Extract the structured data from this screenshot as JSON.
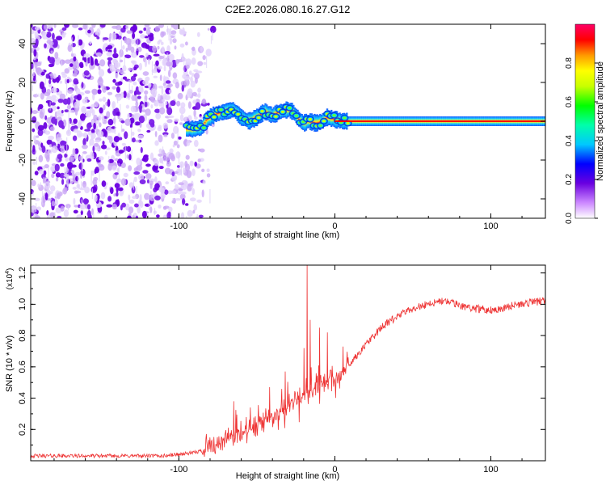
{
  "title": "C2E2.2026.080.16.27.G12",
  "chart_data": [
    {
      "type": "heatmap",
      "name": "spectrogram",
      "xlabel": "Height of straight line (km)",
      "ylabel": "Frequency (Hz)",
      "xlim": [
        -195,
        135
      ],
      "ylim": [
        -50,
        50
      ],
      "xticks": [
        "-100",
        "0",
        "100"
      ],
      "yticks": [
        "-40",
        "-20",
        "0",
        "20",
        "40"
      ],
      "noise_region_x": [
        -195,
        -78
      ],
      "trace": [
        [
          -95,
          -4
        ],
        [
          -90,
          -4
        ],
        [
          -85,
          -3
        ],
        [
          -82,
          1
        ],
        [
          -78,
          3
        ],
        [
          -75,
          4
        ],
        [
          -70,
          5
        ],
        [
          -65,
          6
        ],
        [
          -60,
          2
        ],
        [
          -55,
          0
        ],
        [
          -50,
          2
        ],
        [
          -45,
          5
        ],
        [
          -40,
          3
        ],
        [
          -35,
          5
        ],
        [
          -30,
          6
        ],
        [
          -27,
          5
        ],
        [
          -23,
          1
        ],
        [
          -20,
          -1
        ],
        [
          -17,
          0
        ],
        [
          -12,
          -1
        ],
        [
          -8,
          0
        ],
        [
          -5,
          2
        ],
        [
          0,
          1
        ],
        [
          5,
          0
        ],
        [
          10,
          0
        ],
        [
          20,
          0
        ],
        [
          60,
          0
        ],
        [
          100,
          0
        ],
        [
          135,
          0
        ]
      ],
      "colorbar": {
        "label": "Normalized spectral amplitude",
        "ticks": [
          "0.0",
          "0.2",
          "0.4",
          "0.6",
          "0.8"
        ],
        "range": [
          0,
          1
        ]
      }
    },
    {
      "type": "line",
      "name": "snr",
      "xlabel": "Height of straight line (km)",
      "ylabel": "SNR (10 * v/v)",
      "scale_label": "(x10",
      "scale_exp": "4",
      "scale_close": ")",
      "xlim": [
        -195,
        135
      ],
      "ylim": [
        0,
        1.25
      ],
      "xticks": [
        "-100",
        "0",
        "100"
      ],
      "yticks": [
        "0.2",
        "0.4",
        "0.6",
        "0.8",
        "1.0",
        "1.2"
      ],
      "color": "#ee3333",
      "series_envelope": [
        [
          -195,
          0.03
        ],
        [
          -150,
          0.03
        ],
        [
          -110,
          0.03
        ],
        [
          -90,
          0.05
        ],
        [
          -80,
          0.08
        ],
        [
          -70,
          0.14
        ],
        [
          -60,
          0.17
        ],
        [
          -50,
          0.22
        ],
        [
          -40,
          0.27
        ],
        [
          -30,
          0.34
        ],
        [
          -20,
          0.42
        ],
        [
          -10,
          0.48
        ],
        [
          0,
          0.52
        ],
        [
          10,
          0.62
        ],
        [
          20,
          0.74
        ],
        [
          30,
          0.85
        ],
        [
          40,
          0.92
        ],
        [
          50,
          0.97
        ],
        [
          60,
          1.0
        ],
        [
          70,
          1.02
        ],
        [
          80,
          0.99
        ],
        [
          90,
          0.97
        ],
        [
          100,
          0.96
        ],
        [
          110,
          0.98
        ],
        [
          120,
          1.0
        ],
        [
          135,
          1.02
        ]
      ],
      "spikes": [
        [
          -65,
          0.38
        ],
        [
          -42,
          0.47
        ],
        [
          -32,
          0.57
        ],
        [
          -20,
          0.72
        ],
        [
          -18,
          1.25
        ],
        [
          -16,
          0.9
        ],
        [
          -10,
          0.85
        ],
        [
          -5,
          0.82
        ],
        [
          5,
          0.73
        ]
      ]
    }
  ]
}
